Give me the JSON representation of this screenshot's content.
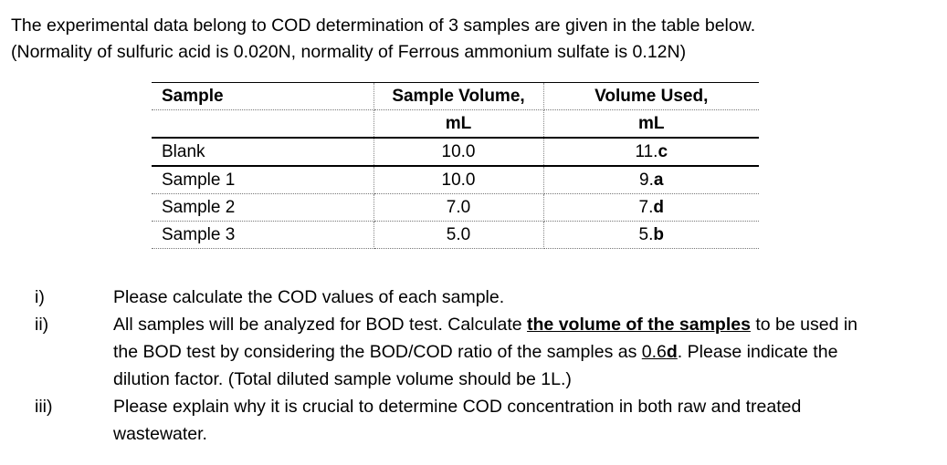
{
  "intro": {
    "line1": "The experimental data belong to COD determination of 3 samples are given in the table below.",
    "line2": "(Normality of sulfuric acid is 0.020N, normality of Ferrous ammonium sulfate is 0.12N)"
  },
  "table": {
    "headers": {
      "sample": "Sample",
      "volume_line1": "Sample Volume,",
      "volume_line2": "mL",
      "used_line1": "Volume Used,",
      "used_line2": "mL"
    },
    "rows": [
      {
        "sample": "Blank",
        "volume": "10.0",
        "used_prefix": "11.",
        "used_suffix": "c"
      },
      {
        "sample": "Sample 1",
        "volume": "10.0",
        "used_prefix": "9.",
        "used_suffix": "a"
      },
      {
        "sample": "Sample 2",
        "volume": "7.0",
        "used_prefix": "7.",
        "used_suffix": "d"
      },
      {
        "sample": "Sample 3",
        "volume": "5.0",
        "used_prefix": "5.",
        "used_suffix": "b"
      }
    ]
  },
  "questions": {
    "q1": {
      "num": "i)",
      "text": "Please calculate the COD values of each sample."
    },
    "q2": {
      "num": "ii)",
      "line1_a": "All samples will be analyzed for BOD test. Calculate ",
      "line1_b": "the volume of the samples",
      "line1_c": " to be used in",
      "line2_a": "the BOD test by considering the BOD/COD ratio of the samples as ",
      "line2_b": "0.6",
      "line2_c": "d",
      "line2_d": ". Please indicate the",
      "line3": "dilution factor. (Total diluted sample volume should be 1L.)"
    },
    "q3": {
      "num": "iii)",
      "line1": "Please explain why it is crucial to determine COD concentration in both raw and treated",
      "line2": "wastewater."
    }
  }
}
